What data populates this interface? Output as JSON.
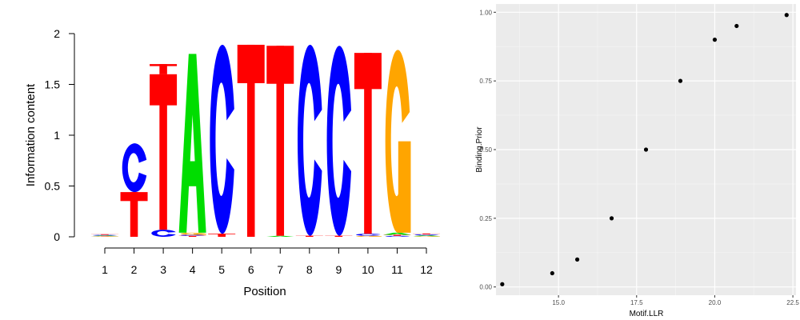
{
  "chart_data": [
    {
      "type": "sequence-logo",
      "xlabel": "Position",
      "ylabel": "Information content",
      "ylim": [
        0,
        2
      ],
      "yticks": [
        "0",
        "0.5",
        "1",
        "1.5",
        "2"
      ],
      "positions": [
        "1",
        "2",
        "3",
        "4",
        "5",
        "6",
        "7",
        "8",
        "9",
        "10",
        "11",
        "12"
      ],
      "letter_colors": {
        "A": "#00dd00",
        "C": "#0000ff",
        "G": "#ffa500",
        "T": "#ff0000"
      },
      "letters": [
        [
          {
            "l": "T",
            "h": 0.003
          },
          {
            "l": "G",
            "h": 0.004
          },
          {
            "l": "A",
            "h": 0.005
          },
          {
            "l": "C",
            "h": 0.007
          },
          {
            "l": "T",
            "h": 0.006
          }
        ],
        [
          {
            "l": "T",
            "h": 0.44
          },
          {
            "l": "C",
            "h": 0.48
          }
        ],
        [
          {
            "l": "C",
            "h": 0.07
          },
          {
            "l": "T",
            "h": 1.53
          },
          {
            "l": "T",
            "h": 0.1
          }
        ],
        [
          {
            "l": "T",
            "h": 0.01
          },
          {
            "l": "C",
            "h": 0.01
          },
          {
            "l": "G",
            "h": 0.02
          },
          {
            "l": "A",
            "h": 1.76
          }
        ],
        [
          {
            "l": "T",
            "h": 0.03
          },
          {
            "l": "C",
            "h": 1.86
          }
        ],
        [
          {
            "l": "T",
            "h": 1.89
          }
        ],
        [
          {
            "l": "A",
            "h": 0.01
          },
          {
            "l": "T",
            "h": 1.87
          }
        ],
        [
          {
            "l": "T",
            "h": 0.01
          },
          {
            "l": "C",
            "h": 1.88
          }
        ],
        [
          {
            "l": "T",
            "h": 0.01
          },
          {
            "l": "C",
            "h": 1.87
          }
        ],
        [
          {
            "l": "G",
            "h": 0.01
          },
          {
            "l": "C",
            "h": 0.02
          },
          {
            "l": "T",
            "h": 1.78
          }
        ],
        [
          {
            "l": "C",
            "h": 0.01
          },
          {
            "l": "T",
            "h": 0.01
          },
          {
            "l": "A",
            "h": 0.02
          },
          {
            "l": "G",
            "h": 1.8
          }
        ],
        [
          {
            "l": "G",
            "h": 0.006
          },
          {
            "l": "A",
            "h": 0.008
          },
          {
            "l": "C",
            "h": 0.01
          },
          {
            "l": "T",
            "h": 0.008
          }
        ]
      ]
    },
    {
      "type": "scatter",
      "xlabel": "Motif.LLR",
      "ylabel": "Binding.Prior",
      "xlim": [
        13.0,
        22.6
      ],
      "ylim": [
        -0.03,
        1.03
      ],
      "xticks": [
        15.0,
        17.5,
        20.0,
        22.5
      ],
      "xtick_labels": [
        "15.0",
        "17.5",
        "20.0",
        "22.5"
      ],
      "yticks": [
        0,
        0.25,
        0.5,
        0.75,
        1.0
      ],
      "ytick_labels": [
        "0.00",
        "0.25",
        "0.50",
        "0.75",
        "1.00"
      ],
      "grid": true,
      "points": [
        {
          "x": 13.2,
          "y": 0.01
        },
        {
          "x": 14.8,
          "y": 0.05
        },
        {
          "x": 15.6,
          "y": 0.1
        },
        {
          "x": 16.7,
          "y": 0.25
        },
        {
          "x": 17.8,
          "y": 0.5
        },
        {
          "x": 18.9,
          "y": 0.75
        },
        {
          "x": 20.0,
          "y": 0.9
        },
        {
          "x": 20.7,
          "y": 0.95
        },
        {
          "x": 22.3,
          "y": 0.99
        }
      ]
    }
  ]
}
